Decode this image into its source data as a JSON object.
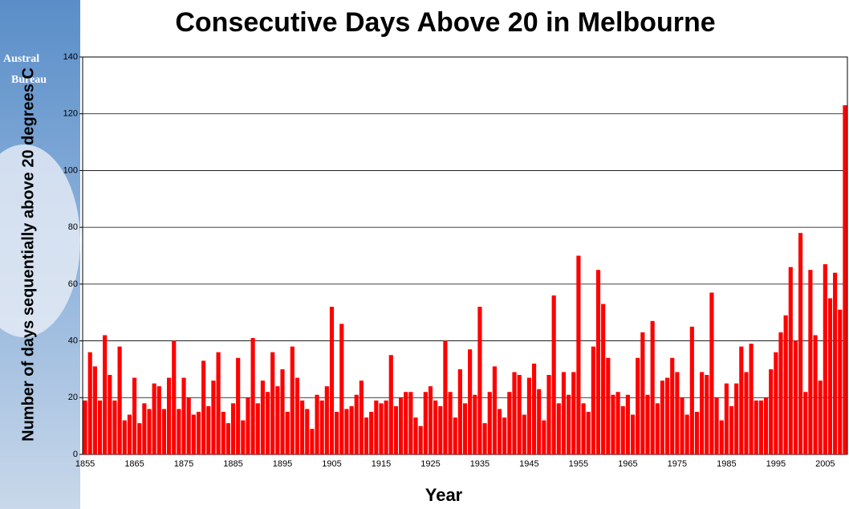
{
  "chart_data": {
    "type": "bar",
    "title": "Consecutive Days Above 20 in Melbourne",
    "y_label": "Number of days sequentially above 20 degrees C",
    "x_label": "Year",
    "logo_text": [
      "Austral",
      "Bureau"
    ],
    "color": "#ff0000",
    "grid": true,
    "ylim": [
      0,
      140
    ],
    "yticks": [
      0,
      20,
      40,
      60,
      80,
      100,
      120,
      140
    ],
    "categories": [
      "1855",
      null,
      null,
      null,
      null,
      null,
      null,
      null,
      null,
      null,
      "1865",
      null,
      null,
      null,
      null,
      null,
      null,
      null,
      null,
      null,
      "1875",
      null,
      null,
      null,
      null,
      null,
      null,
      null,
      null,
      null,
      "1885",
      null,
      null,
      null,
      null,
      null,
      null,
      null,
      null,
      null,
      "1895",
      null,
      null,
      null,
      null,
      null,
      null,
      null,
      null,
      null,
      "1905",
      null,
      null,
      null,
      null,
      null,
      null,
      null,
      null,
      null,
      "1915",
      null,
      null,
      null,
      null,
      null,
      null,
      null,
      null,
      null,
      "1925",
      null,
      null,
      null,
      null,
      null,
      null,
      null,
      null,
      null,
      "1935",
      null,
      null,
      null,
      null,
      null,
      null,
      null,
      null,
      null,
      "1945",
      null,
      null,
      null,
      null,
      null,
      null,
      null,
      null,
      null,
      "1955",
      null,
      null,
      null,
      null,
      null,
      null,
      null,
      null,
      null,
      "1965",
      null,
      null,
      null,
      null,
      null,
      null,
      null,
      null,
      null,
      "1975",
      null,
      null,
      null,
      null,
      null,
      null,
      null,
      null,
      null,
      "1985",
      null,
      null,
      null,
      null,
      null,
      null,
      null,
      null,
      null,
      "1995",
      null,
      null,
      null,
      null,
      null,
      null,
      null,
      null,
      null,
      "2005",
      null,
      null,
      null,
      null
    ],
    "values": [
      19,
      36,
      31,
      19,
      42,
      28,
      19,
      38,
      12,
      14,
      27,
      11,
      18,
      16,
      25,
      24,
      16,
      27,
      40,
      16,
      27,
      20,
      14,
      15,
      33,
      17,
      26,
      36,
      15,
      11,
      18,
      34,
      12,
      20,
      41,
      18,
      26,
      22,
      36,
      24,
      30,
      15,
      38,
      27,
      19,
      16,
      9,
      21,
      19,
      24,
      52,
      15,
      46,
      16,
      17,
      21,
      26,
      13,
      15,
      19,
      18,
      19,
      35,
      17,
      20,
      22,
      22,
      13,
      10,
      22,
      24,
      19,
      17,
      40,
      22,
      13,
      30,
      18,
      37,
      21,
      52,
      11,
      22,
      31,
      16,
      13,
      22,
      29,
      28,
      14,
      27,
      32,
      23,
      12,
      28,
      56,
      18,
      29,
      21,
      29,
      70,
      18,
      15,
      38,
      65,
      53,
      34,
      21,
      22,
      17,
      21,
      14,
      34,
      43,
      21,
      47,
      18,
      26,
      27,
      34,
      29,
      20,
      14,
      45,
      15,
      29,
      28,
      57,
      20,
      12,
      25,
      17,
      25,
      38,
      29,
      39,
      19,
      19,
      20,
      30,
      36,
      43,
      49,
      66,
      40,
      78,
      22,
      65,
      42,
      26,
      67,
      55,
      64,
      51,
      123
    ]
  }
}
